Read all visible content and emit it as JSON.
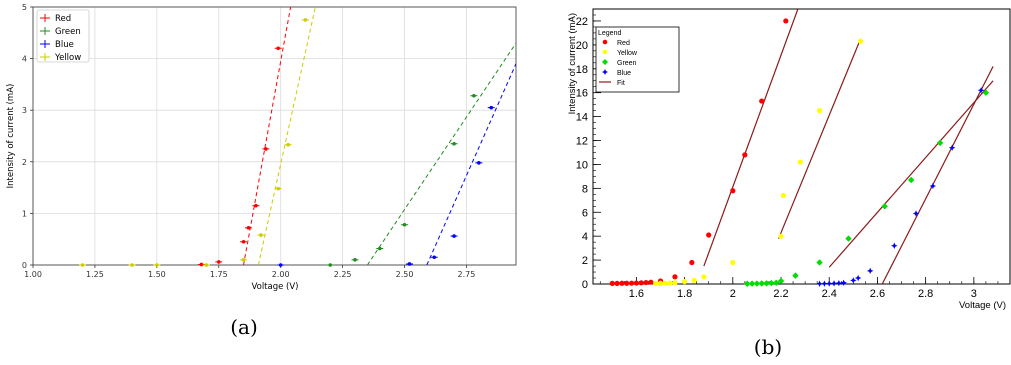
{
  "chart_data": [
    {
      "panel_label": "(a)",
      "type": "scatter",
      "xlabel": "Voltage (V)",
      "ylabel": "Intensity of current (mA)",
      "xlim": [
        1.0,
        2.95
      ],
      "ylim": [
        0,
        5
      ],
      "xticks": [
        "1.00",
        "1.25",
        "1.50",
        "1.75",
        "2.00",
        "2.25",
        "2.50",
        "2.75"
      ],
      "yticks": [
        "0",
        "1",
        "2",
        "3",
        "4",
        "5"
      ],
      "grid": true,
      "legend_position": "top-left",
      "series": [
        {
          "name": "Red",
          "color": "#ff0000",
          "points": [
            [
              1.68,
              0.01
            ],
            [
              1.75,
              0.06
            ],
            [
              1.85,
              0.45
            ],
            [
              1.87,
              0.72
            ],
            [
              1.9,
              1.15
            ],
            [
              1.94,
              2.25
            ],
            [
              1.99,
              4.2
            ]
          ],
          "fit": [
            [
              1.85,
              0.0
            ],
            [
              2.04,
              5.0
            ]
          ]
        },
        {
          "name": "Green",
          "color": "#228b22",
          "points": [
            [
              2.2,
              0.0
            ],
            [
              2.3,
              0.1
            ],
            [
              2.4,
              0.32
            ],
            [
              2.5,
              0.78
            ],
            [
              2.7,
              2.35
            ],
            [
              2.78,
              3.28
            ]
          ],
          "fit": [
            [
              2.35,
              0.0
            ],
            [
              2.95,
              4.3
            ]
          ]
        },
        {
          "name": "Blue",
          "color": "#0000ff",
          "points": [
            [
              2.0,
              0.0
            ],
            [
              2.52,
              0.02
            ],
            [
              2.62,
              0.15
            ],
            [
              2.7,
              0.56
            ],
            [
              2.8,
              1.98
            ],
            [
              2.85,
              3.05
            ]
          ],
          "fit": [
            [
              2.59,
              0.0
            ],
            [
              2.95,
              3.9
            ]
          ]
        },
        {
          "name": "Yellow",
          "color": "#cccc00",
          "points": [
            [
              1.2,
              0.0
            ],
            [
              1.4,
              0.0
            ],
            [
              1.5,
              0.0
            ],
            [
              1.7,
              0.0
            ],
            [
              1.85,
              0.1
            ],
            [
              1.92,
              0.58
            ],
            [
              1.99,
              1.48
            ],
            [
              2.03,
              2.33
            ],
            [
              2.1,
              4.75
            ]
          ],
          "fit": [
            [
              1.91,
              0.0
            ],
            [
              2.14,
              5.0
            ]
          ]
        }
      ]
    },
    {
      "panel_label": "(b)",
      "type": "scatter",
      "xlabel": "Voltage (V)",
      "ylabel": "Intensity of current (mA)",
      "xlim": [
        1.42,
        3.15
      ],
      "ylim": [
        0,
        23
      ],
      "xticks": [
        "1.6",
        "1.8",
        "2",
        "2.2",
        "2.4",
        "2.6",
        "2.8",
        "3"
      ],
      "yticks": [
        "0",
        "2",
        "4",
        "6",
        "8",
        "10",
        "12",
        "14",
        "16",
        "18",
        "20",
        "22"
      ],
      "legend_title": "Legend",
      "legend_position": "top-left",
      "series": [
        {
          "name": "Red",
          "color": "#ff0000",
          "points": [
            [
              1.5,
              0.05
            ],
            [
              1.52,
              0.05
            ],
            [
              1.54,
              0.06
            ],
            [
              1.56,
              0.06
            ],
            [
              1.58,
              0.07
            ],
            [
              1.6,
              0.08
            ],
            [
              1.62,
              0.1
            ],
            [
              1.64,
              0.12
            ],
            [
              1.66,
              0.15
            ],
            [
              1.7,
              0.25
            ],
            [
              1.76,
              0.6
            ],
            [
              1.83,
              1.8
            ],
            [
              1.9,
              4.1
            ],
            [
              2.0,
              7.8
            ],
            [
              2.05,
              10.8
            ],
            [
              2.12,
              15.3
            ],
            [
              2.22,
              22.0
            ]
          ]
        },
        {
          "name": "Yellow",
          "color": "#ffff00",
          "points": [
            [
              1.68,
              0.05
            ],
            [
              1.7,
              0.06
            ],
            [
              1.72,
              0.07
            ],
            [
              1.74,
              0.08
            ],
            [
              1.76,
              0.1
            ],
            [
              1.8,
              0.2
            ],
            [
              1.84,
              0.3
            ],
            [
              1.88,
              0.6
            ],
            [
              2.0,
              1.8
            ],
            [
              2.2,
              4.0
            ],
            [
              2.21,
              7.4
            ],
            [
              2.28,
              10.2
            ],
            [
              2.36,
              14.5
            ],
            [
              2.53,
              20.3
            ]
          ]
        },
        {
          "name": "Green",
          "color": "#00dd00",
          "points": [
            [
              2.06,
              0.02
            ],
            [
              2.08,
              0.03
            ],
            [
              2.1,
              0.04
            ],
            [
              2.12,
              0.05
            ],
            [
              2.14,
              0.06
            ],
            [
              2.16,
              0.08
            ],
            [
              2.18,
              0.1
            ],
            [
              2.2,
              0.25
            ],
            [
              2.26,
              0.7
            ],
            [
              2.36,
              1.8
            ],
            [
              2.48,
              3.8
            ],
            [
              2.63,
              6.5
            ],
            [
              2.74,
              8.7
            ],
            [
              2.86,
              11.8
            ],
            [
              3.05,
              16.0
            ]
          ]
        },
        {
          "name": "Blue",
          "color": "#0000ff",
          "points": [
            [
              2.36,
              0.02
            ],
            [
              2.38,
              0.03
            ],
            [
              2.4,
              0.04
            ],
            [
              2.42,
              0.05
            ],
            [
              2.44,
              0.07
            ],
            [
              2.46,
              0.1
            ],
            [
              2.5,
              0.3
            ],
            [
              2.52,
              0.5
            ],
            [
              2.57,
              1.1
            ],
            [
              2.67,
              3.2
            ],
            [
              2.76,
              5.9
            ],
            [
              2.83,
              8.2
            ],
            [
              2.91,
              11.4
            ],
            [
              3.03,
              16.2
            ]
          ]
        },
        {
          "name": "Fit",
          "color": "#8b1a1a",
          "lines": [
            [
              [
                1.88,
                1.5
              ],
              [
                2.27,
                23.0
              ]
            ],
            [
              [
                2.19,
                3.8
              ],
              [
                2.53,
                20.5
              ]
            ],
            [
              [
                2.4,
                1.4
              ],
              [
                3.08,
                17.0
              ]
            ],
            [
              [
                2.62,
                0.0
              ],
              [
                3.08,
                18.2
              ]
            ]
          ]
        }
      ]
    }
  ]
}
